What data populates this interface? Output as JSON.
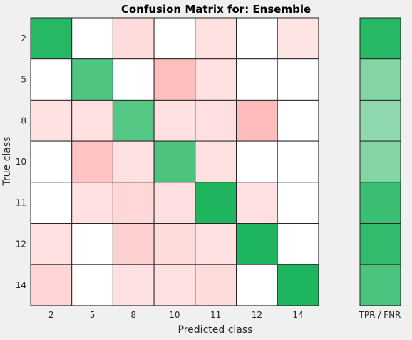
{
  "chart_data": {
    "type": "heatmap",
    "title": "Confusion Matrix for: Ensemble",
    "xlabel": "Predicted class",
    "ylabel": "True class",
    "classes": [
      "2",
      "5",
      "8",
      "10",
      "11",
      "12",
      "14"
    ],
    "matrix": [
      [
        0.92,
        0.0,
        0.14,
        0.0,
        0.12,
        0.0,
        0.11
      ],
      [
        0.0,
        0.78,
        0.0,
        0.26,
        0.12,
        0.0,
        0.0
      ],
      [
        0.12,
        0.12,
        0.76,
        0.12,
        0.13,
        0.27,
        0.0
      ],
      [
        0.0,
        0.24,
        0.12,
        0.79,
        0.12,
        0.0,
        0.0
      ],
      [
        0.0,
        0.12,
        0.16,
        0.13,
        0.94,
        0.12,
        0.0
      ],
      [
        0.12,
        0.0,
        0.19,
        0.14,
        0.12,
        0.96,
        0.0
      ],
      [
        0.17,
        0.0,
        0.12,
        0.12,
        0.14,
        0.0,
        0.96
      ]
    ],
    "summary_label": "TPR / FNR",
    "summary_values": [
      0.92,
      0.6,
      0.56,
      0.6,
      0.85,
      0.88,
      0.8
    ],
    "colors": {
      "diagonal": "#1db55e",
      "off_diagonal": "#ffb9b9",
      "empty": "#ffffff",
      "grid": "#262626",
      "background": "#f0f0f0"
    },
    "grid": true
  }
}
